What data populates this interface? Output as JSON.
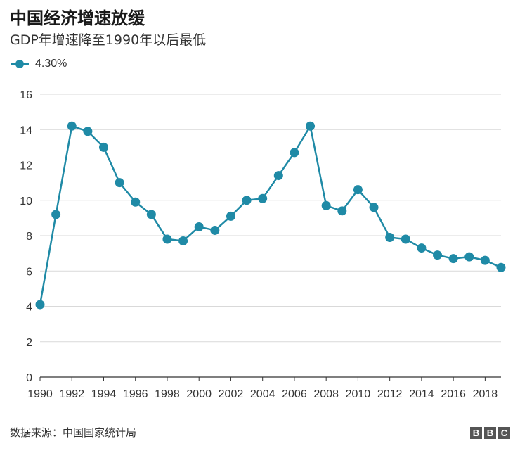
{
  "title": "中国经济增速放缓",
  "subtitle": "GDP年增速降至1990年以后最低",
  "footer": {
    "source": "数据来源：中国国家统计局",
    "logo": [
      "B",
      "B",
      "C"
    ]
  },
  "colors": {
    "series": "#1f8aa6",
    "grid": "#d9d9d9",
    "axis": "#333333",
    "logo": "#555555"
  },
  "chart_data": {
    "type": "line",
    "title": "中国经济增速放缓",
    "subtitle": "GDP年增速降至1990年以后最低",
    "xlabel": "",
    "ylabel": "",
    "x": [
      1990,
      1991,
      1992,
      1993,
      1994,
      1995,
      1996,
      1997,
      1998,
      1999,
      2000,
      2001,
      2002,
      2003,
      2004,
      2005,
      2006,
      2007,
      2008,
      2009,
      2010,
      2011,
      2012,
      2013,
      2014,
      2015,
      2016,
      2017,
      2018,
      2019
    ],
    "series": [
      {
        "name": "4.30%",
        "values": [
          4.1,
          9.2,
          14.2,
          13.9,
          13.0,
          11.0,
          9.9,
          9.2,
          7.8,
          7.7,
          8.5,
          8.3,
          9.1,
          10.0,
          10.1,
          11.4,
          12.7,
          14.2,
          9.7,
          9.4,
          10.6,
          9.6,
          7.9,
          7.8,
          7.3,
          6.9,
          6.7,
          6.8,
          6.6,
          6.2
        ]
      }
    ],
    "x_ticks": [
      "1990",
      "1992",
      "1994",
      "1996",
      "1998",
      "2000",
      "2002",
      "2004",
      "2006",
      "2008",
      "2010",
      "2012",
      "2014",
      "2016",
      "2018"
    ],
    "y_ticks": [
      "0",
      "2",
      "4",
      "6",
      "8",
      "10",
      "12",
      "14",
      "16"
    ],
    "xlim": [
      1990,
      2019
    ],
    "ylim": [
      0,
      16
    ],
    "grid": true,
    "legend_position": "top-left",
    "marker": "circle"
  }
}
